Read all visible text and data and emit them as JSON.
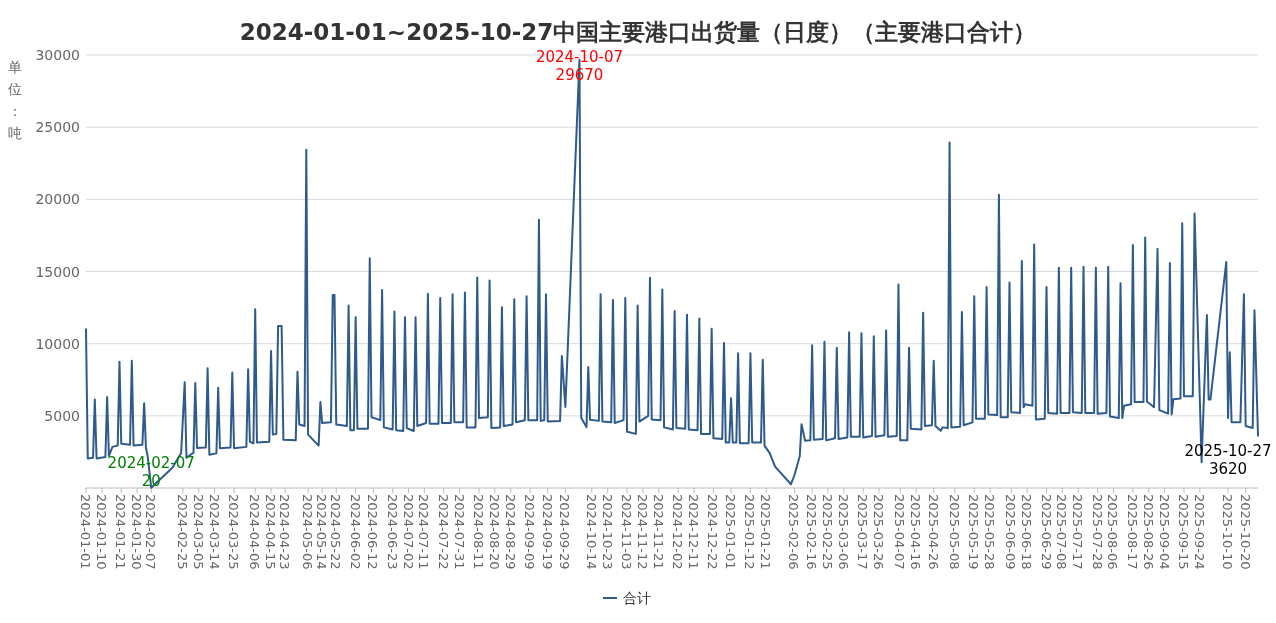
{
  "chart_data": {
    "type": "line",
    "title": "2024-01-01~2025-10-27中国主要港口出货量（日度）（主要港口合计）",
    "ylabel": "单位：吨",
    "xlim": [
      "2024-01-01",
      "2025-10-27"
    ],
    "xticks": [
      "2024-01-01",
      "2024-01-10",
      "2024-01-21",
      "2024-01-30",
      "2024-02-07",
      "2024-02-25",
      "2024-03-05",
      "2024-03-14",
      "2024-03-25",
      "2024-04-06",
      "2024-04-15",
      "2024-04-23",
      "2024-05-06",
      "2024-05-14",
      "2024-05-22",
      "2024-06-02",
      "2024-06-12",
      "2024-06-23",
      "2024-07-02",
      "2024-07-11",
      "2024-07-22",
      "2024-07-31",
      "2024-08-11",
      "2024-08-20",
      "2024-08-29",
      "2024-09-09",
      "2024-09-19",
      "2024-09-29",
      "2024-10-14",
      "2024-10-23",
      "2024-11-03",
      "2024-11-12",
      "2024-11-21",
      "2024-12-02",
      "2024-12-11",
      "2024-12-22",
      "2025-01-01",
      "2025-01-12",
      "2025-01-21",
      "2025-02-06",
      "2025-02-16",
      "2025-02-25",
      "2025-03-06",
      "2025-03-17",
      "2025-03-26",
      "2025-04-07",
      "2025-04-16",
      "2025-04-26",
      "2025-05-08",
      "2025-05-19",
      "2025-05-28",
      "2025-06-09",
      "2025-06-18",
      "2025-06-29",
      "2025-07-08",
      "2025-07-17",
      "2025-07-28",
      "2025-08-06",
      "2025-08-17",
      "2025-08-26",
      "2025-09-04",
      "2025-09-15",
      "2025-09-24",
      "2025-10-10",
      "2025-10-20"
    ],
    "ylim": [
      0,
      30000
    ],
    "yticks": [
      5000,
      10000,
      15000,
      20000,
      25000,
      30000
    ],
    "grid": "y",
    "legend": "bottom",
    "marker": "none",
    "line_style": "solid",
    "series": [
      {
        "name": "合计",
        "color": "#2f5a8c",
        "x": [
          "2024-01-01",
          "2024-01-02",
          "2024-01-05",
          "2024-01-06",
          "2024-01-07",
          "2024-01-12",
          "2024-01-13",
          "2024-01-14",
          "2024-01-16",
          "2024-01-19",
          "2024-01-20",
          "2024-01-21",
          "2024-01-26",
          "2024-01-27",
          "2024-01-28",
          "2024-02-02",
          "2024-02-03",
          "2024-02-04",
          "2024-02-05",
          "2024-02-07",
          "2024-02-19",
          "2024-02-24",
          "2024-02-26",
          "2024-02-27",
          "2024-03-02",
          "2024-03-03",
          "2024-03-04",
          "2024-03-09",
          "2024-03-10",
          "2024-03-11",
          "2024-03-15",
          "2024-03-16",
          "2024-03-17",
          "2024-03-23",
          "2024-03-24",
          "2024-03-25",
          "2024-04-01",
          "2024-04-02",
          "2024-04-03",
          "2024-04-05",
          "2024-04-06",
          "2024-04-07",
          "2024-04-14",
          "2024-04-15",
          "2024-04-16",
          "2024-04-18",
          "2024-04-19",
          "2024-04-21",
          "2024-04-22",
          "2024-04-29",
          "2024-04-30",
          "2024-05-01",
          "2024-05-04",
          "2024-05-05",
          "2024-05-06",
          "2024-05-12",
          "2024-05-13",
          "2024-05-14",
          "2024-05-19",
          "2024-05-20",
          "2024-05-21",
          "2024-05-22",
          "2024-05-28",
          "2024-05-29",
          "2024-05-30",
          "2024-06-01",
          "2024-06-02",
          "2024-06-03",
          "2024-06-09",
          "2024-06-10",
          "2024-06-11",
          "2024-06-16",
          "2024-06-17",
          "2024-06-18",
          "2024-06-23",
          "2024-06-24",
          "2024-06-25",
          "2024-06-29",
          "2024-06-30",
          "2024-07-01",
          "2024-07-05",
          "2024-07-06",
          "2024-07-07",
          "2024-07-12",
          "2024-07-13",
          "2024-07-14",
          "2024-07-19",
          "2024-07-20",
          "2024-07-21",
          "2024-07-26",
          "2024-07-27",
          "2024-07-28",
          "2024-08-02",
          "2024-08-03",
          "2024-08-04",
          "2024-08-09",
          "2024-08-10",
          "2024-08-11",
          "2024-08-16",
          "2024-08-17",
          "2024-08-18",
          "2024-08-23",
          "2024-08-24",
          "2024-08-25",
          "2024-08-30",
          "2024-08-31",
          "2024-09-01",
          "2024-09-06",
          "2024-09-07",
          "2024-09-08",
          "2024-09-13",
          "2024-09-14",
          "2024-09-15",
          "2024-09-17",
          "2024-09-18",
          "2024-09-19",
          "2024-09-26",
          "2024-09-27",
          "2024-09-29",
          "2024-10-07",
          "2024-10-08",
          "2024-10-11",
          "2024-10-12",
          "2024-10-13",
          "2024-10-18",
          "2024-10-19",
          "2024-10-20",
          "2024-10-25",
          "2024-10-26",
          "2024-10-27",
          "2024-11-01",
          "2024-11-02",
          "2024-11-03",
          "2024-11-08",
          "2024-11-09",
          "2024-11-10",
          "2024-11-15",
          "2024-11-16",
          "2024-11-17",
          "2024-11-22",
          "2024-11-23",
          "2024-11-24",
          "2024-11-29",
          "2024-11-30",
          "2024-12-01",
          "2024-12-06",
          "2024-12-07",
          "2024-12-08",
          "2024-12-13",
          "2024-12-14",
          "2024-12-15",
          "2024-12-20",
          "2024-12-21",
          "2024-12-22",
          "2024-12-27",
          "2024-12-28",
          "2024-12-29",
          "2024-12-31",
          "2025-01-01",
          "2025-01-02",
          "2025-01-04",
          "2025-01-05",
          "2025-01-06",
          "2025-01-11",
          "2025-01-12",
          "2025-01-13",
          "2025-01-18",
          "2025-01-19",
          "2025-01-20",
          "2025-01-23",
          "2025-01-26",
          "2025-02-04",
          "2025-02-06",
          "2025-02-09",
          "2025-02-10",
          "2025-02-12",
          "2025-02-15",
          "2025-02-16",
          "2025-02-17",
          "2025-02-22",
          "2025-02-23",
          "2025-02-24",
          "2025-03-01",
          "2025-03-02",
          "2025-03-03",
          "2025-03-08",
          "2025-03-09",
          "2025-03-10",
          "2025-03-15",
          "2025-03-16",
          "2025-03-17",
          "2025-03-22",
          "2025-03-23",
          "2025-03-24",
          "2025-03-29",
          "2025-03-30",
          "2025-03-31",
          "2025-04-05",
          "2025-04-06",
          "2025-04-07",
          "2025-04-11",
          "2025-04-12",
          "2025-04-13",
          "2025-04-19",
          "2025-04-20",
          "2025-04-21",
          "2025-04-25",
          "2025-04-26",
          "2025-04-27",
          "2025-04-30",
          "2025-05-01",
          "2025-05-04",
          "2025-05-05",
          "2025-05-06",
          "2025-05-11",
          "2025-05-12",
          "2025-05-13",
          "2025-05-18",
          "2025-05-19",
          "2025-05-20",
          "2025-05-25",
          "2025-05-26",
          "2025-05-27",
          "2025-06-01",
          "2025-06-02",
          "2025-06-03",
          "2025-06-07",
          "2025-06-08",
          "2025-06-09",
          "2025-06-14",
          "2025-06-15",
          "2025-06-16",
          "2025-06-17",
          "2025-06-21",
          "2025-06-22",
          "2025-06-23",
          "2025-06-28",
          "2025-06-29",
          "2025-06-30",
          "2025-07-05",
          "2025-07-06",
          "2025-07-07",
          "2025-07-12",
          "2025-07-13",
          "2025-07-14",
          "2025-07-19",
          "2025-07-20",
          "2025-07-21",
          "2025-07-26",
          "2025-07-27",
          "2025-07-28",
          "2025-08-02",
          "2025-08-03",
          "2025-08-04",
          "2025-08-09",
          "2025-08-10",
          "2025-08-11",
          "2025-08-12",
          "2025-08-16",
          "2025-08-17",
          "2025-08-18",
          "2025-08-23",
          "2025-08-24",
          "2025-08-25",
          "2025-08-29",
          "2025-08-31",
          "2025-09-01",
          "2025-09-06",
          "2025-09-07",
          "2025-09-08",
          "2025-09-09",
          "2025-09-13",
          "2025-09-14",
          "2025-09-15",
          "2025-09-20",
          "2025-09-21",
          "2025-09-25",
          "2025-09-28",
          "2025-09-29",
          "2025-09-30",
          "2025-10-09",
          "2025-10-10",
          "2025-10-11",
          "2025-10-12",
          "2025-10-17",
          "2025-10-19",
          "2025-10-20",
          "2025-10-24",
          "2025-10-25",
          "2025-10-27"
        ],
        "values": [
          11000,
          2040,
          2100,
          6130,
          2050,
          2150,
          6310,
          2220,
          2850,
          2950,
          8740,
          3070,
          3000,
          8820,
          2940,
          3000,
          5880,
          2800,
          2200,
          20,
          1400,
          2430,
          7330,
          2100,
          2450,
          7280,
          2780,
          2800,
          8300,
          2300,
          2400,
          6950,
          2750,
          2800,
          8000,
          2750,
          2850,
          8230,
          3200,
          3100,
          12390,
          3150,
          3200,
          9500,
          3700,
          3750,
          11220,
          11220,
          3350,
          3300,
          8050,
          4400,
          4300,
          23430,
          3700,
          2940,
          5950,
          4500,
          4550,
          13380,
          13380,
          4400,
          4300,
          12640,
          4000,
          4000,
          11830,
          4100,
          4100,
          15920,
          4900,
          4700,
          13720,
          4200,
          4050,
          12220,
          4000,
          3950,
          11830,
          4150,
          3950,
          11830,
          4300,
          4500,
          13460,
          4450,
          4450,
          13160,
          4500,
          4500,
          13420,
          4550,
          4550,
          13540,
          4200,
          4200,
          14590,
          4850,
          4900,
          14380,
          4150,
          4200,
          12520,
          4300,
          4400,
          13080,
          4550,
          4700,
          13290,
          4700,
          4700,
          18580,
          4650,
          4700,
          13420,
          4600,
          4650,
          9150,
          5620,
          29670,
          4850,
          4220,
          8380,
          4730,
          4650,
          13420,
          4600,
          4550,
          13030,
          4500,
          4700,
          13160,
          3900,
          3750,
          12650,
          4600,
          5000,
          14560,
          4750,
          4700,
          13750,
          4200,
          4050,
          12270,
          4150,
          4100,
          12010,
          4050,
          4000,
          11750,
          3750,
          3750,
          11040,
          3450,
          3400,
          10040,
          3150,
          3150,
          6210,
          3150,
          3150,
          9330,
          3100,
          3100,
          9330,
          3150,
          3150,
          8890,
          2940,
          2400,
          1480,
          260,
          900,
          2220,
          4420,
          3270,
          3300,
          9890,
          3350,
          3400,
          10140,
          3300,
          3450,
          9710,
          3400,
          3500,
          10790,
          3550,
          3550,
          10730,
          3500,
          3600,
          10520,
          3550,
          3650,
          10910,
          3550,
          3600,
          14100,
          3300,
          3300,
          9710,
          4100,
          4050,
          12140,
          4300,
          4350,
          8820,
          4300,
          3960,
          4200,
          4150,
          23930,
          4200,
          4250,
          12190,
          4350,
          4550,
          13290,
          4800,
          4800,
          13930,
          5100,
          5050,
          20310,
          4900,
          4900,
          14230,
          5250,
          5200,
          15720,
          5600,
          5800,
          5700,
          16870,
          4750,
          4800,
          13930,
          5200,
          5150,
          15260,
          5200,
          5200,
          15260,
          5250,
          5200,
          15330,
          5200,
          5200,
          15280,
          5150,
          5200,
          15330,
          4950,
          4850,
          14180,
          4850,
          5700,
          5800,
          16840,
          5950,
          5950,
          17350,
          6000,
          5600,
          16580,
          5400,
          5150,
          15590,
          5100,
          6150,
          6200,
          18350,
          6350,
          6350,
          19010,
          1790,
          11980,
          6130,
          6130,
          15660,
          4850,
          9400,
          4550,
          4550,
          13420,
          4300,
          4160,
          12320,
          3620
        ]
      }
    ],
    "annotations": [
      {
        "text": "2024-10-07\n29670",
        "x": "2024-10-07",
        "y": 29670
      },
      {
        "text": "2024-02-07\n20",
        "x": "2024-02-07",
        "y": 20
      },
      {
        "text": "2025-10-27\n3620",
        "x": "2025-10-27",
        "y": 3620
      }
    ]
  }
}
